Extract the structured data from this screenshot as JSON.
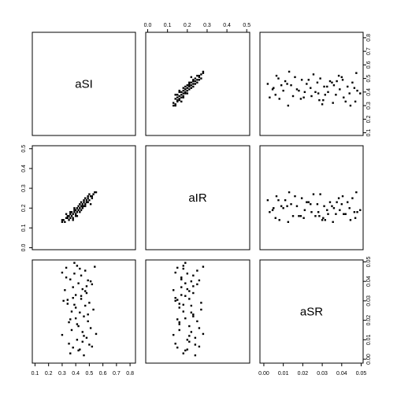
{
  "chart_data": {
    "type": "scatter",
    "title": "",
    "variables": [
      {
        "name": "aSI",
        "ticks": [
          0.1,
          0.2,
          0.3,
          0.4,
          0.5,
          0.6,
          0.7,
          0.8
        ],
        "range": [
          0.08,
          0.84
        ]
      },
      {
        "name": "aIR",
        "ticks": [
          0.0,
          0.1,
          0.2,
          0.3,
          0.4,
          0.5
        ],
        "range": [
          -0.01,
          0.515
        ]
      },
      {
        "name": "aSR",
        "ticks": [
          0.0,
          0.01,
          0.02,
          0.03,
          0.04,
          0.05
        ],
        "range": [
          -0.002,
          0.051
        ]
      }
    ],
    "tick_label_format": {
      "aSI": [
        "0.1",
        "0.2",
        "0.3",
        "0.4",
        "0.5",
        "0.6",
        "0.7",
        "0.8"
      ],
      "aIR": [
        "0.0",
        "0.1",
        "0.2",
        "0.3",
        "0.4",
        "0.5"
      ],
      "aSR": [
        "0.00",
        "0.01",
        "0.02",
        "0.03",
        "0.04",
        "0.05"
      ]
    },
    "observations": {
      "aSI": [
        0.3,
        0.31,
        0.32,
        0.33,
        0.34,
        0.35,
        0.35,
        0.36,
        0.37,
        0.37,
        0.38,
        0.38,
        0.39,
        0.39,
        0.4,
        0.4,
        0.41,
        0.41,
        0.42,
        0.42,
        0.43,
        0.43,
        0.44,
        0.44,
        0.45,
        0.45,
        0.46,
        0.46,
        0.47,
        0.47,
        0.48,
        0.48,
        0.49,
        0.49,
        0.5,
        0.5,
        0.51,
        0.52,
        0.53,
        0.54,
        0.55,
        0.33,
        0.36,
        0.38,
        0.41,
        0.43,
        0.45,
        0.47,
        0.49,
        0.51,
        0.4,
        0.42,
        0.44,
        0.46,
        0.48,
        0.36,
        0.39,
        0.52,
        0.3,
        0.34
      ],
      "aIR": [
        0.13,
        0.14,
        0.13,
        0.15,
        0.15,
        0.16,
        0.14,
        0.17,
        0.16,
        0.18,
        0.17,
        0.15,
        0.18,
        0.2,
        0.19,
        0.17,
        0.2,
        0.18,
        0.21,
        0.19,
        0.22,
        0.2,
        0.21,
        0.23,
        0.22,
        0.2,
        0.23,
        0.24,
        0.22,
        0.25,
        0.24,
        0.23,
        0.25,
        0.26,
        0.24,
        0.27,
        0.26,
        0.25,
        0.27,
        0.28,
        0.28,
        0.17,
        0.18,
        0.14,
        0.16,
        0.18,
        0.21,
        0.21,
        0.23,
        0.22,
        0.16,
        0.19,
        0.19,
        0.21,
        0.23,
        0.15,
        0.19,
        0.26,
        0.14,
        0.16
      ],
      "aSR": [
        0.0125,
        0.03,
        0.0355,
        0.047,
        0.0305,
        0.019,
        0.008,
        0.041,
        0.015,
        0.0245,
        0.037,
        0.006,
        0.028,
        0.044,
        0.021,
        0.033,
        0.01,
        0.048,
        0.017,
        0.039,
        0.024,
        0.005,
        0.031,
        0.043,
        0.014,
        0.036,
        0.022,
        0.002,
        0.0275,
        0.0455,
        0.011,
        0.034,
        0.0195,
        0.0405,
        0.0075,
        0.029,
        0.016,
        0.0385,
        0.0255,
        0.0475,
        0.013,
        0.042,
        0.003,
        0.0315,
        0.018,
        0.0465,
        0.009,
        0.035,
        0.023,
        0.04,
        0.0265,
        0.0045,
        0.0325,
        0.012,
        0.0375,
        0.0205,
        0.0495,
        0.0065,
        0.0445,
        0.0285
      ]
    },
    "grid": false,
    "legend": "none",
    "point_style": "filled-square",
    "point_color": "#000000"
  }
}
